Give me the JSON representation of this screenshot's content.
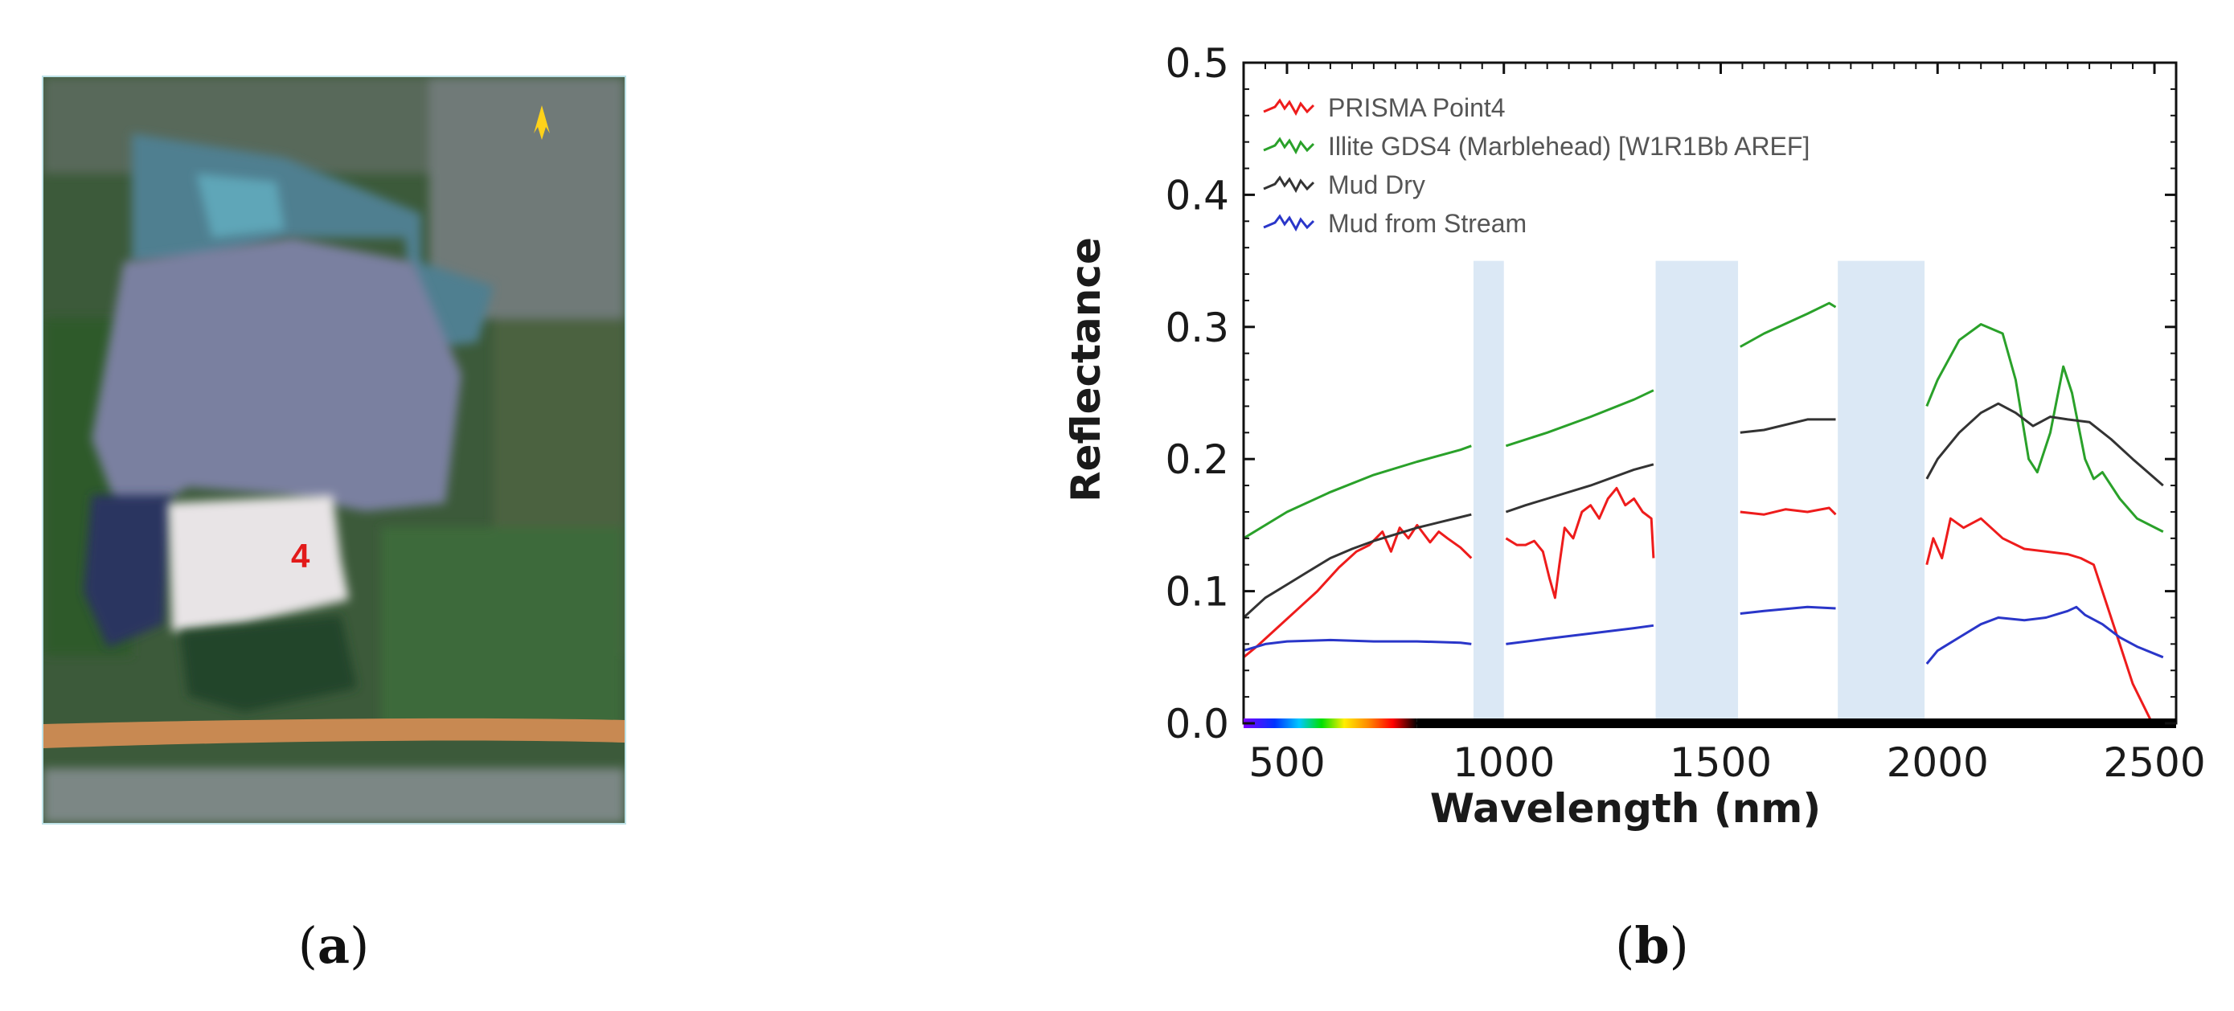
{
  "panel_a": {
    "point_label": "4",
    "caption_letter": "a"
  },
  "panel_b": {
    "caption_letter": "b"
  },
  "colors": {
    "prisma": "#ee1c1c",
    "illite": "#2aa12a",
    "mud_dry": "#333333",
    "mud_stream": "#2a36c9",
    "absorption_band": "#dbe8f5"
  },
  "chart_data": {
    "type": "line",
    "title": "",
    "xlabel": "Wavelength (nm)",
    "ylabel": "Reflectance",
    "xlim": [
      400,
      2550
    ],
    "ylim": [
      0,
      0.5
    ],
    "xticks": [
      500,
      1000,
      1500,
      2000,
      2500
    ],
    "yticks": [
      0.0,
      0.1,
      0.2,
      0.3,
      0.4,
      0.5
    ],
    "ytick_labels": [
      "0.0",
      "0.1",
      "0.2",
      "0.3",
      "0.4",
      "0.5"
    ],
    "legend_position": "top-left",
    "masked_bands_nm": [
      [
        930,
        1000
      ],
      [
        1350,
        1540
      ],
      [
        1770,
        1970
      ]
    ],
    "series": [
      {
        "name": "PRISMA Point4",
        "color": "#ee1c1c",
        "segments": [
          [
            [
              400,
              0.05
            ],
            [
              430,
              0.058
            ],
            [
              470,
              0.07
            ],
            [
              520,
              0.085
            ],
            [
              570,
              0.1
            ],
            [
              620,
              0.118
            ],
            [
              660,
              0.13
            ],
            [
              690,
              0.135
            ],
            [
              720,
              0.145
            ],
            [
              740,
              0.13
            ],
            [
              760,
              0.148
            ],
            [
              780,
              0.14
            ],
            [
              800,
              0.15
            ],
            [
              830,
              0.137
            ],
            [
              850,
              0.145
            ],
            [
              870,
              0.14
            ],
            [
              900,
              0.133
            ],
            [
              925,
              0.125
            ]
          ],
          [
            [
              1005,
              0.14
            ],
            [
              1030,
              0.135
            ],
            [
              1050,
              0.135
            ],
            [
              1070,
              0.138
            ],
            [
              1090,
              0.13
            ],
            [
              1105,
              0.11
            ],
            [
              1118,
              0.095
            ],
            [
              1128,
              0.12
            ],
            [
              1140,
              0.148
            ],
            [
              1160,
              0.14
            ],
            [
              1180,
              0.16
            ],
            [
              1200,
              0.165
            ],
            [
              1220,
              0.155
            ],
            [
              1240,
              0.17
            ],
            [
              1260,
              0.178
            ],
            [
              1280,
              0.165
            ],
            [
              1300,
              0.17
            ],
            [
              1320,
              0.16
            ],
            [
              1340,
              0.155
            ],
            [
              1345,
              0.125
            ]
          ],
          [
            [
              1545,
              0.16
            ],
            [
              1600,
              0.158
            ],
            [
              1650,
              0.162
            ],
            [
              1700,
              0.16
            ],
            [
              1750,
              0.163
            ],
            [
              1765,
              0.158
            ]
          ],
          [
            [
              1975,
              0.12
            ],
            [
              1990,
              0.14
            ],
            [
              2010,
              0.125
            ],
            [
              2030,
              0.155
            ],
            [
              2060,
              0.148
            ],
            [
              2100,
              0.155
            ],
            [
              2150,
              0.14
            ],
            [
              2200,
              0.132
            ],
            [
              2250,
              0.13
            ],
            [
              2300,
              0.128
            ],
            [
              2330,
              0.125
            ],
            [
              2360,
              0.12
            ],
            [
              2390,
              0.09
            ],
            [
              2420,
              0.06
            ],
            [
              2450,
              0.03
            ],
            [
              2480,
              0.01
            ],
            [
              2495,
              0.0
            ]
          ]
        ]
      },
      {
        "name": "Illite GDS4 (Marblehead) [W1R1Bb AREF]",
        "color": "#2aa12a",
        "segments": [
          [
            [
              400,
              0.14
            ],
            [
              500,
              0.16
            ],
            [
              600,
              0.175
            ],
            [
              700,
              0.188
            ],
            [
              800,
              0.198
            ],
            [
              900,
              0.207
            ],
            [
              925,
              0.21
            ]
          ],
          [
            [
              1005,
              0.21
            ],
            [
              1100,
              0.22
            ],
            [
              1200,
              0.232
            ],
            [
              1300,
              0.245
            ],
            [
              1345,
              0.252
            ]
          ],
          [
            [
              1545,
              0.285
            ],
            [
              1600,
              0.295
            ],
            [
              1700,
              0.31
            ],
            [
              1750,
              0.318
            ],
            [
              1765,
              0.315
            ]
          ],
          [
            [
              1975,
              0.24
            ],
            [
              2000,
              0.26
            ],
            [
              2050,
              0.29
            ],
            [
              2100,
              0.302
            ],
            [
              2150,
              0.295
            ],
            [
              2180,
              0.26
            ],
            [
              2210,
              0.2
            ],
            [
              2230,
              0.19
            ],
            [
              2260,
              0.22
            ],
            [
              2290,
              0.27
            ],
            [
              2310,
              0.25
            ],
            [
              2340,
              0.2
            ],
            [
              2360,
              0.185
            ],
            [
              2380,
              0.19
            ],
            [
              2420,
              0.17
            ],
            [
              2460,
              0.155
            ],
            [
              2520,
              0.145
            ]
          ]
        ]
      },
      {
        "name": "Mud Dry",
        "color": "#333333",
        "segments": [
          [
            [
              400,
              0.08
            ],
            [
              450,
              0.095
            ],
            [
              500,
              0.105
            ],
            [
              550,
              0.115
            ],
            [
              600,
              0.125
            ],
            [
              650,
              0.132
            ],
            [
              700,
              0.138
            ],
            [
              750,
              0.143
            ],
            [
              800,
              0.148
            ],
            [
              850,
              0.152
            ],
            [
              900,
              0.156
            ],
            [
              925,
              0.158
            ]
          ],
          [
            [
              1005,
              0.16
            ],
            [
              1050,
              0.165
            ],
            [
              1100,
              0.17
            ],
            [
              1200,
              0.18
            ],
            [
              1300,
              0.192
            ],
            [
              1345,
              0.196
            ]
          ],
          [
            [
              1545,
              0.22
            ],
            [
              1600,
              0.222
            ],
            [
              1700,
              0.23
            ],
            [
              1765,
              0.23
            ]
          ],
          [
            [
              1975,
              0.185
            ],
            [
              2000,
              0.2
            ],
            [
              2050,
              0.22
            ],
            [
              2100,
              0.235
            ],
            [
              2140,
              0.242
            ],
            [
              2180,
              0.235
            ],
            [
              2220,
              0.225
            ],
            [
              2260,
              0.232
            ],
            [
              2300,
              0.23
            ],
            [
              2350,
              0.228
            ],
            [
              2400,
              0.215
            ],
            [
              2450,
              0.2
            ],
            [
              2520,
              0.18
            ]
          ]
        ]
      },
      {
        "name": "Mud from Stream",
        "color": "#2a36c9",
        "segments": [
          [
            [
              400,
              0.055
            ],
            [
              450,
              0.06
            ],
            [
              500,
              0.062
            ],
            [
              600,
              0.063
            ],
            [
              700,
              0.062
            ],
            [
              800,
              0.062
            ],
            [
              900,
              0.061
            ],
            [
              925,
              0.06
            ]
          ],
          [
            [
              1005,
              0.06
            ],
            [
              1100,
              0.064
            ],
            [
              1200,
              0.068
            ],
            [
              1300,
              0.072
            ],
            [
              1345,
              0.074
            ]
          ],
          [
            [
              1545,
              0.083
            ],
            [
              1600,
              0.085
            ],
            [
              1700,
              0.088
            ],
            [
              1765,
              0.087
            ]
          ],
          [
            [
              1975,
              0.045
            ],
            [
              2000,
              0.055
            ],
            [
              2050,
              0.065
            ],
            [
              2100,
              0.075
            ],
            [
              2140,
              0.08
            ],
            [
              2200,
              0.078
            ],
            [
              2250,
              0.08
            ],
            [
              2300,
              0.085
            ],
            [
              2320,
              0.088
            ],
            [
              2340,
              0.082
            ],
            [
              2380,
              0.075
            ],
            [
              2420,
              0.065
            ],
            [
              2460,
              0.058
            ],
            [
              2520,
              0.05
            ]
          ]
        ]
      }
    ]
  }
}
